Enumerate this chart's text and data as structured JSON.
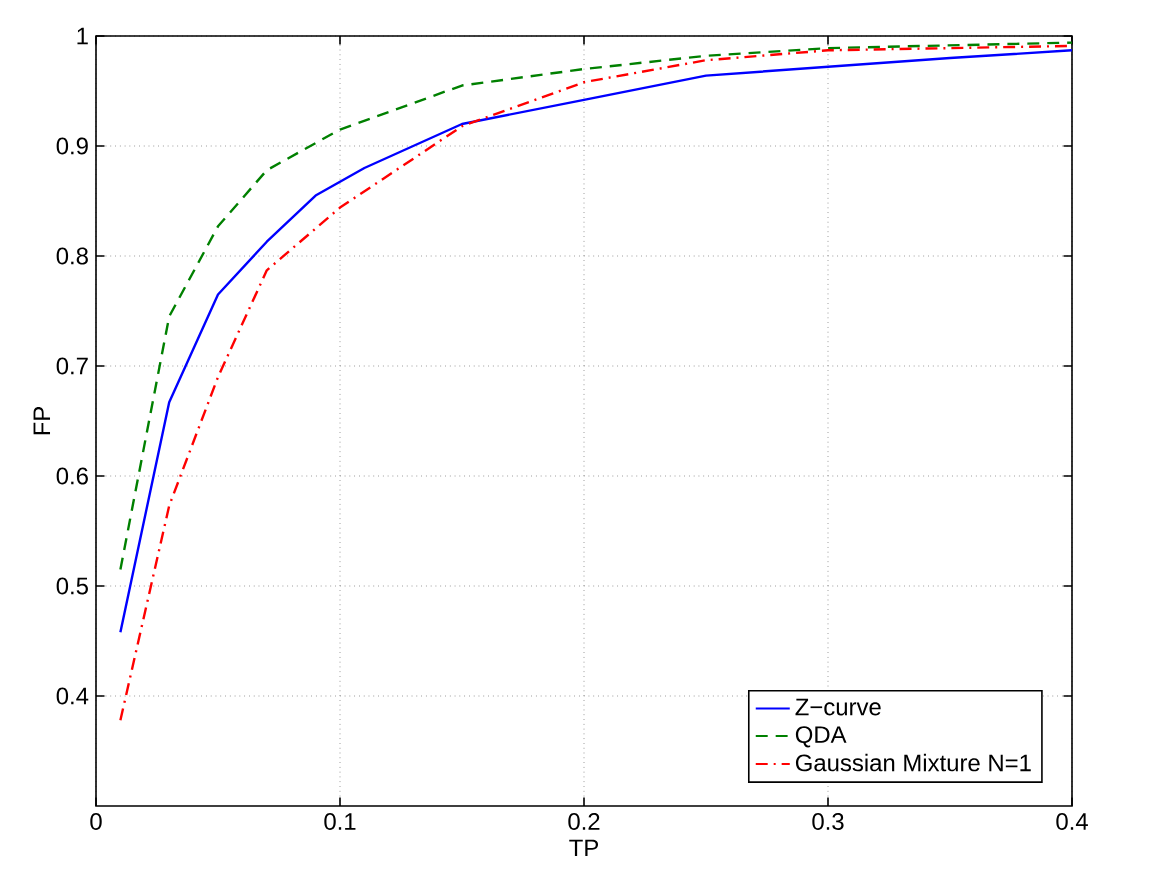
{
  "chart_data": {
    "type": "line",
    "xlabel": "TP",
    "ylabel": "FP",
    "xlim": [
      0,
      0.4
    ],
    "ylim": [
      0.3,
      1
    ],
    "xticks": [
      0,
      0.1,
      0.2,
      0.3,
      0.4
    ],
    "yticks": [
      0.4,
      0.5,
      0.6,
      0.7,
      0.8,
      0.9,
      1
    ],
    "grid": true,
    "legend": "bottom right",
    "series": [
      {
        "name": "Z−curve",
        "color": "#0000ff",
        "line_style": "solid",
        "x": [
          0.01,
          0.03,
          0.05,
          0.07,
          0.09,
          0.11,
          0.15,
          0.2,
          0.25,
          0.3,
          0.35,
          0.4
        ],
        "values": [
          0.458,
          0.667,
          0.765,
          0.813,
          0.855,
          0.88,
          0.92,
          0.942,
          0.964,
          0.972,
          0.98,
          0.987
        ]
      },
      {
        "name": "QDA",
        "color": "#008000",
        "line_style": "dashed",
        "x": [
          0.01,
          0.03,
          0.05,
          0.07,
          0.1,
          0.15,
          0.2,
          0.25,
          0.3,
          0.4
        ],
        "values": [
          0.515,
          0.745,
          0.827,
          0.878,
          0.915,
          0.955,
          0.97,
          0.982,
          0.989,
          0.994
        ]
      },
      {
        "name": "Gaussian Mixture N=1",
        "color": "#ff0000",
        "line_style": "dashdot",
        "x": [
          0.01,
          0.03,
          0.05,
          0.07,
          0.1,
          0.15,
          0.2,
          0.25,
          0.3,
          0.4
        ],
        "values": [
          0.378,
          0.573,
          0.69,
          0.787,
          0.844,
          0.918,
          0.958,
          0.978,
          0.987,
          0.991
        ]
      }
    ]
  }
}
